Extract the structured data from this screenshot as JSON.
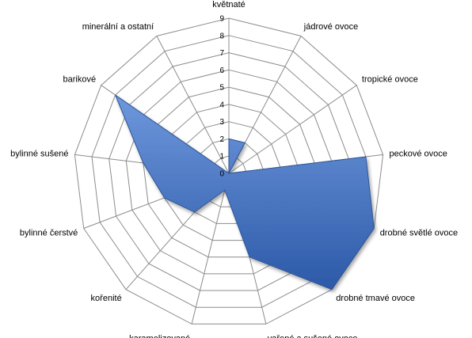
{
  "chart_data": {
    "type": "radar",
    "categories": [
      "květnaté",
      "jádrové ovoce",
      "tropické ovoce",
      "peckové ovoce",
      "drobné světlé ovoce",
      "drobné tmavé ovoce",
      "vařené a sušené ovoce",
      "karamelizované",
      "kořenité",
      "bylinné čerstvé",
      "bylinné sušené",
      "barikové",
      "minerální a ostatní"
    ],
    "series": [
      {
        "values": [
          2,
          2,
          0,
          8,
          9,
          9,
          5,
          1,
          3,
          4,
          5,
          8,
          0
        ]
      }
    ],
    "rlim": [
      0,
      9
    ],
    "ticks": [
      "0",
      "1",
      "2",
      "3",
      "4",
      "5",
      "6",
      "7",
      "8",
      "9"
    ],
    "grid": true,
    "legend": "none",
    "colors": {
      "fill_light": "#6e98dc",
      "fill_dark": "#2c59a8",
      "stroke": "#2f5597",
      "grid": "#8c8c8c"
    }
  }
}
